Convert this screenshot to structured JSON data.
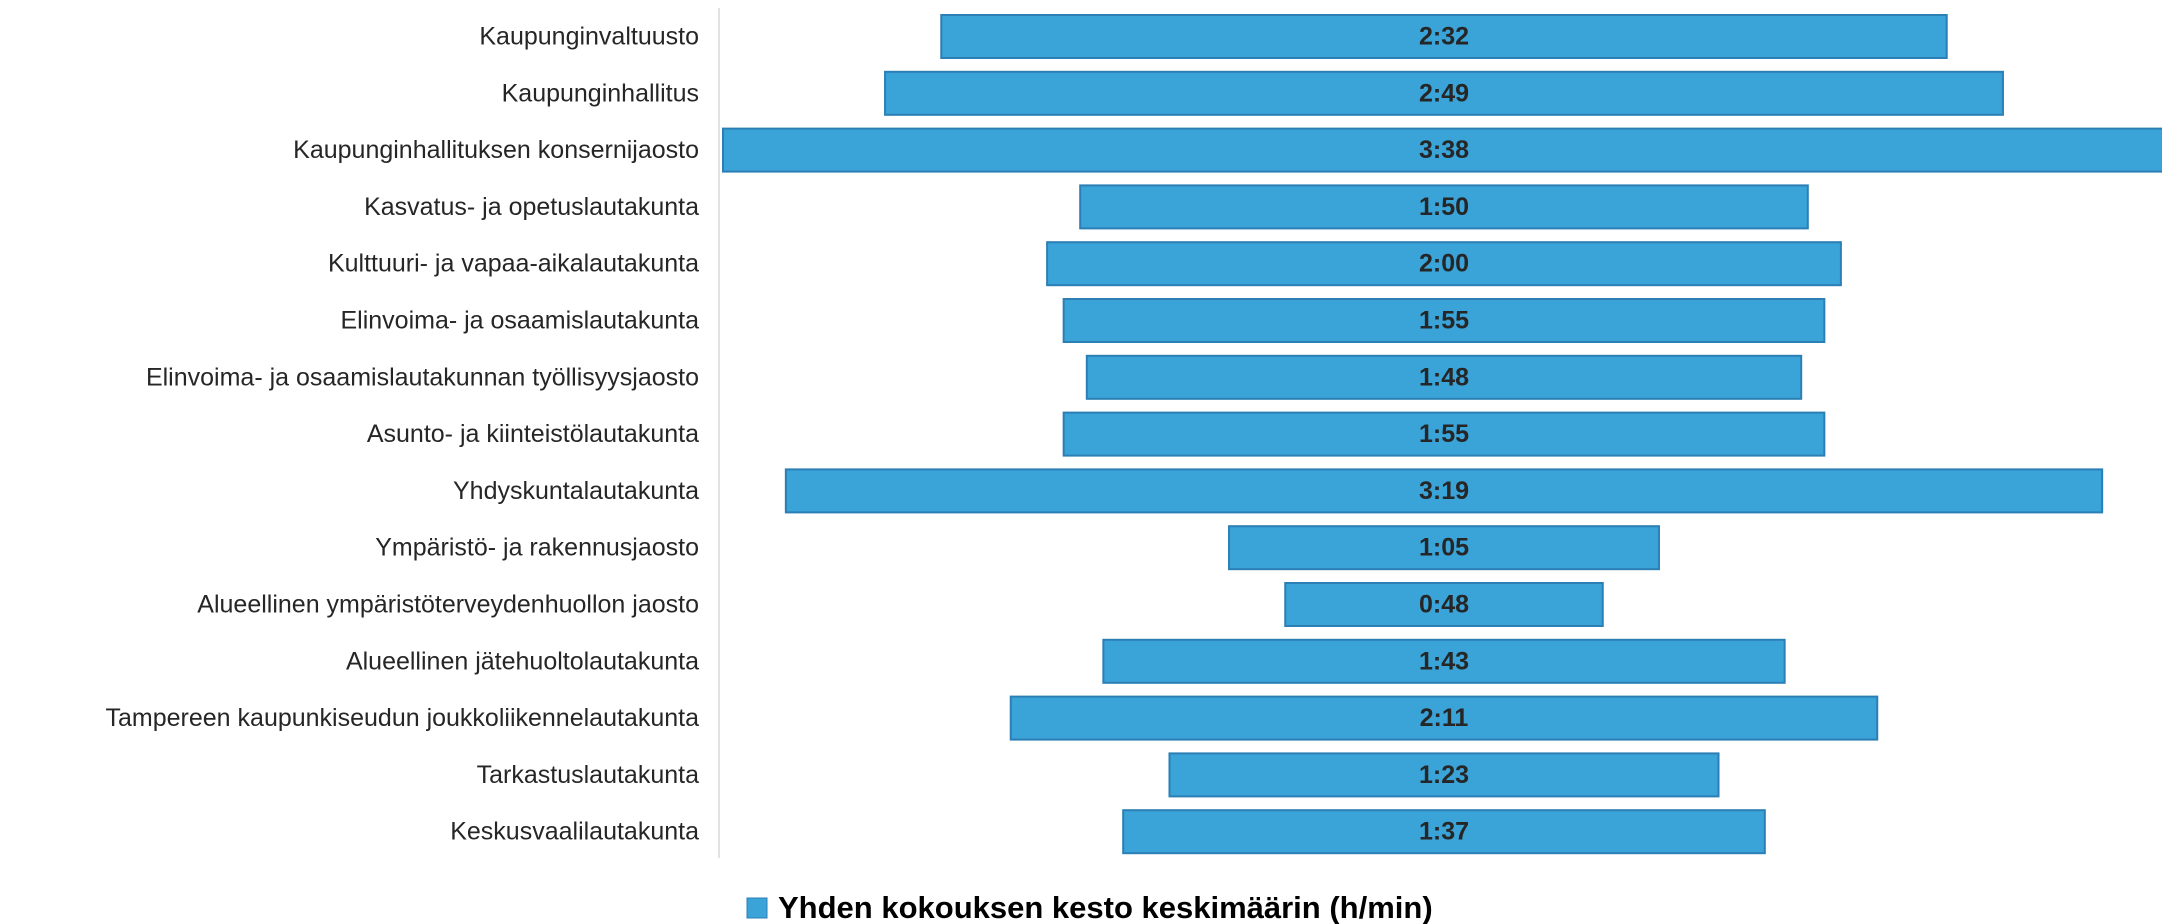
{
  "chart_data": {
    "type": "bar",
    "orientation": "horizontal",
    "layout": "centered",
    "categories": [
      "Kaupunginvaltuusto",
      "Kaupunginhallitus",
      "Kaupunginhallituksen konsernijaosto",
      "Kasvatus- ja opetuslautakunta",
      "Kulttuuri- ja vapaa-aikalautakunta",
      "Elinvoima- ja osaamislautakunta",
      "Elinvoima- ja osaamislautakunnan työllisyysjaosto",
      "Asunto- ja kiinteistölautakunta",
      "Yhdyskuntalautakunta",
      "Ympäristö- ja rakennusjaosto",
      "Alueellinen ympäristöterveydenhuollon jaosto",
      "Alueellinen jätehuoltolautakunta",
      "Tampereen kaupunkiseudun joukkoliikennelautakunta",
      "Tarkastuslautakunta",
      "Keskusvaalilautakunta"
    ],
    "series": [
      {
        "name": "Yhden kokouksen kesto keskimäärin (h/min)",
        "values_minutes": [
          152,
          169,
          218,
          110,
          120,
          115,
          108,
          115,
          199,
          65,
          48,
          103,
          131,
          83,
          97
        ],
        "labels": [
          "2:32",
          "2:49",
          "3:38",
          "1:50",
          "2:00",
          "1:55",
          "1:48",
          "1:55",
          "3:19",
          "1:05",
          "0:48",
          "1:43",
          "2:11",
          "1:23",
          "1:37"
        ]
      }
    ],
    "legend_position": "bottom",
    "grid": false
  },
  "colors": {
    "bar_fill": "#3aa3d8",
    "bar_stroke": "#2b7fb5"
  }
}
